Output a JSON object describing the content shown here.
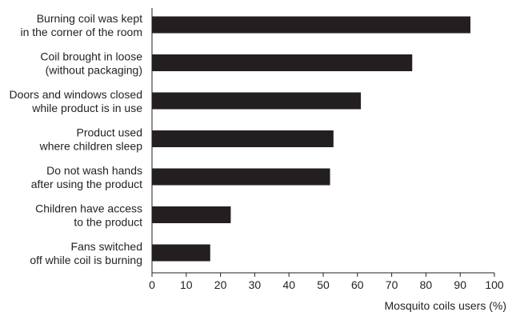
{
  "chart_data": {
    "type": "bar",
    "orientation": "horizontal",
    "categories": [
      [
        "Burning coil was kept",
        "in the corner of the room"
      ],
      [
        "Coil brought in loose",
        "(without packaging)"
      ],
      [
        "Doors and windows closed",
        "while product is in use"
      ],
      [
        "Product used",
        "where children sleep"
      ],
      [
        "Do not wash hands",
        "after using the product"
      ],
      [
        "Children have access",
        "to the product"
      ],
      [
        "Fans switched",
        "off while coil is burning"
      ]
    ],
    "values": [
      93,
      76,
      61,
      53,
      52,
      23,
      17
    ],
    "xlabel": "Mosquito coils users (%)",
    "ylabel": "",
    "xlim": [
      0,
      100
    ],
    "xticks": [
      "0",
      "10",
      "20",
      "30",
      "40",
      "50",
      "60",
      "70",
      "80",
      "90",
      "100"
    ],
    "grid": false,
    "bar_color": "#231f20",
    "axis_color": "#231f20"
  }
}
